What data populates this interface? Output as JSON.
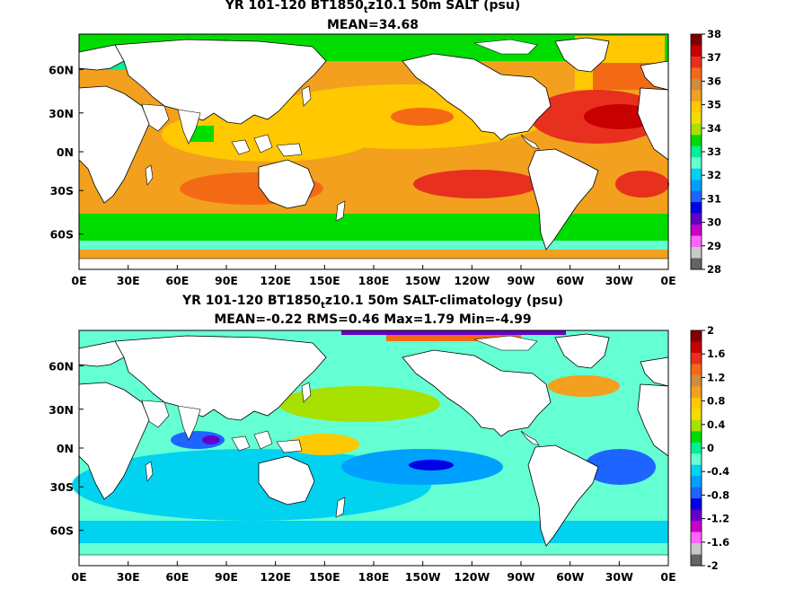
{
  "panels": [
    {
      "title_prefix": "YR 101-120 BT1850",
      "title_sub": "t",
      "title_suffix": "z10.1 50m SALT (psu)",
      "subtitle": "MEAN=34.68",
      "colorbar": {
        "labels": [
          "38",
          "37",
          "36",
          "35",
          "34",
          "33",
          "32",
          "31",
          "30",
          "29",
          "28"
        ],
        "colors": [
          "#800000",
          "#c80000",
          "#e8301e",
          "#f46a14",
          "#d08c3c",
          "#f2a01e",
          "#ffc800",
          "#f4dc00",
          "#a8e000",
          "#00dc00",
          "#00f096",
          "#64ffd2",
          "#00d2f0",
          "#00a0ff",
          "#1e64ff",
          "#0000e6",
          "#6400c8",
          "#c800c8",
          "#ff64ff",
          "#c8c8c8",
          "#646464"
        ]
      }
    },
    {
      "title_prefix": "YR 101-120 BT1850",
      "title_sub": "t",
      "title_suffix": "z10.1 50m SALT-climatology (psu)",
      "subtitle": "MEAN=-0.22   RMS=0.46   Max=1.79   Min=-4.99",
      "colorbar": {
        "labels": [
          "2",
          "1.6",
          "1.2",
          "0.8",
          "0.4",
          "0",
          "-0.4",
          "-0.8",
          "-1.2",
          "-1.6",
          "-2"
        ],
        "colors": [
          "#800000",
          "#c80000",
          "#e8301e",
          "#f46a14",
          "#d08c3c",
          "#f2a01e",
          "#ffc800",
          "#f4dc00",
          "#a8e000",
          "#00dc00",
          "#00f096",
          "#64ffd2",
          "#00d2f0",
          "#00a0ff",
          "#1e64ff",
          "#0000e6",
          "#6400c8",
          "#c800c8",
          "#ff64ff",
          "#c8c8c8",
          "#646464"
        ]
      }
    }
  ],
  "lon_labels": [
    "0E",
    "30E",
    "60E",
    "90E",
    "120E",
    "150E",
    "180E",
    "150W",
    "120W",
    "90W",
    "60W",
    "30W",
    "0E"
  ],
  "lat_labels": [
    "60N",
    "30N",
    "0N",
    "30S",
    "60S"
  ]
}
